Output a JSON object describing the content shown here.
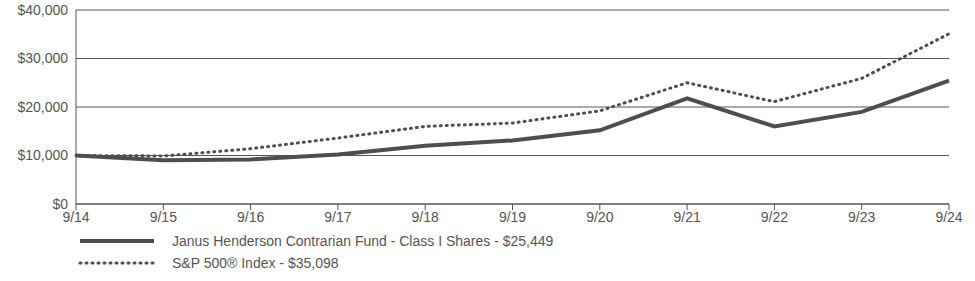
{
  "chart_data": {
    "type": "line",
    "categories": [
      "9/14",
      "9/15",
      "9/16",
      "9/17",
      "9/18",
      "9/19",
      "9/20",
      "9/21",
      "9/22",
      "9/23",
      "9/24"
    ],
    "series": [
      {
        "name": "Janus Henderson Contrarian Fund - Class I Shares - $25,449",
        "color": "#4d4d52",
        "line_style": "solid",
        "values": [
          10000,
          9000,
          9200,
          10200,
          12000,
          13100,
          15200,
          21800,
          16000,
          19000,
          25449
        ]
      },
      {
        "name": "S&P 500® Index - $35,098",
        "color": "#4d4d52",
        "line_style": "dotted",
        "values": [
          10000,
          9900,
          11400,
          13600,
          16000,
          16700,
          19200,
          25000,
          21100,
          25900,
          35098
        ]
      }
    ],
    "ylim": [
      0,
      40000
    ],
    "yticks": [
      {
        "value": 0,
        "label": "$0"
      },
      {
        "value": 10000,
        "label": "$10,000"
      },
      {
        "value": 20000,
        "label": "$20,000"
      },
      {
        "value": 30000,
        "label": "$30,000"
      },
      {
        "value": 40000,
        "label": "$40,000"
      }
    ],
    "grid": true,
    "legend": "bottom"
  }
}
